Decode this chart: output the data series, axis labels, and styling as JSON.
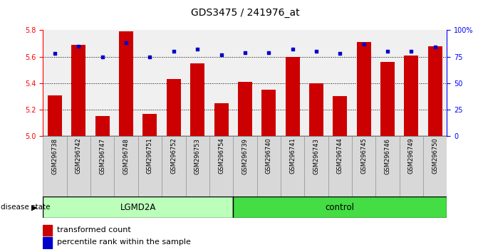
{
  "title": "GDS3475 / 241976_at",
  "samples": [
    "GSM296738",
    "GSM296742",
    "GSM296747",
    "GSM296748",
    "GSM296751",
    "GSM296752",
    "GSM296753",
    "GSM296754",
    "GSM296739",
    "GSM296740",
    "GSM296741",
    "GSM296743",
    "GSM296744",
    "GSM296745",
    "GSM296746",
    "GSM296749",
    "GSM296750"
  ],
  "transformed_count": [
    5.31,
    5.69,
    5.15,
    5.79,
    5.17,
    5.43,
    5.55,
    5.25,
    5.41,
    5.35,
    5.6,
    5.4,
    5.3,
    5.71,
    5.56,
    5.61,
    5.68
  ],
  "percentile_rank": [
    78,
    85,
    75,
    88,
    75,
    80,
    82,
    77,
    79,
    79,
    82,
    80,
    78,
    87,
    80,
    80,
    84
  ],
  "ylim_left": [
    5.0,
    5.8
  ],
  "ylim_right": [
    0,
    100
  ],
  "yticks_left": [
    5.0,
    5.2,
    5.4,
    5.6,
    5.8
  ],
  "yticks_right": [
    0,
    25,
    50,
    75,
    100
  ],
  "bar_color": "#cc0000",
  "dot_color": "#0000cc",
  "group1_label": "LGMD2A",
  "group1_count": 8,
  "group2_label": "control",
  "group2_count": 9,
  "group1_color": "#bbffbb",
  "group2_color": "#44dd44",
  "disease_state_label": "disease state",
  "legend_bar": "transformed count",
  "legend_dot": "percentile rank within the sample",
  "title_fontsize": 10,
  "tick_fontsize": 7,
  "label_fontsize": 8,
  "bg_color": "#f0f0f0"
}
